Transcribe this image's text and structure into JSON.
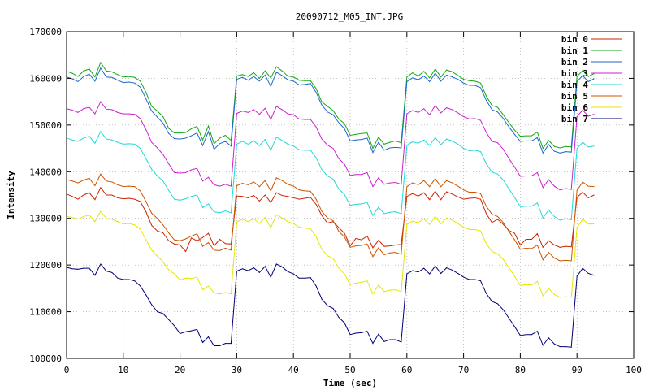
{
  "chart_data": {
    "type": "line",
    "title": "20090712_M05_INT.JPG",
    "xlabel": "Time (sec)",
    "ylabel": "Intensity",
    "xlim": [
      0,
      100
    ],
    "ylim": [
      100000,
      170000
    ],
    "xticks": [
      0,
      10,
      20,
      30,
      40,
      50,
      60,
      70,
      80,
      90,
      100
    ],
    "yticks": [
      100000,
      110000,
      120000,
      130000,
      140000,
      150000,
      160000,
      170000
    ],
    "grid": true,
    "legend_position": "top-right",
    "x": [
      0,
      1,
      2,
      3,
      4,
      5,
      6,
      7,
      8,
      9,
      10,
      11,
      12,
      13,
      14,
      15,
      16,
      17,
      18,
      19,
      20,
      21,
      22,
      23,
      24,
      25,
      26,
      27,
      28,
      29,
      30,
      31,
      32,
      33,
      34,
      35,
      36,
      37,
      38,
      39,
      40,
      41,
      42,
      43,
      44,
      45,
      46,
      47,
      48,
      49,
      50,
      51,
      52,
      53,
      54,
      55,
      56,
      57,
      58,
      59,
      60,
      61,
      62,
      63,
      64,
      65,
      66,
      67,
      68,
      69,
      70,
      71,
      72,
      73,
      74,
      75,
      76,
      77,
      78,
      79,
      80,
      81,
      82,
      83,
      84,
      85,
      86,
      87,
      88,
      89,
      90,
      91,
      92,
      93
    ],
    "series": [
      {
        "name": "bin 0",
        "color": "#cc2200",
        "values": [
          135200,
          134700,
          134100,
          135000,
          135500,
          134000,
          136600,
          135000,
          135000,
          134400,
          134200,
          134300,
          134100,
          133600,
          131400,
          128500,
          127300,
          126900,
          125200,
          124500,
          124300,
          122900,
          125800,
          125200,
          125900,
          126800,
          124100,
          125500,
          124600,
          124500,
          134800,
          134700,
          134400,
          134900,
          133700,
          135000,
          133400,
          135500,
          134900,
          134700,
          134400,
          134100,
          134300,
          134500,
          133000,
          130600,
          129000,
          129300,
          128000,
          126800,
          124100,
          125700,
          125400,
          126200,
          123700,
          125300,
          124000,
          124100,
          124300,
          124400,
          134700,
          135300,
          134800,
          135500,
          134000,
          135800,
          134000,
          135700,
          135200,
          134600,
          134100,
          134300,
          134400,
          134100,
          131000,
          129100,
          129800,
          128700,
          127400,
          126800,
          124300,
          125500,
          125500,
          126700,
          123800,
          125200,
          124300,
          123800,
          124000,
          123900,
          134500,
          135600,
          134400,
          135000
        ]
      },
      {
        "name": "bin 1",
        "color": "#11aa11",
        "values": [
          161500,
          161100,
          160400,
          161600,
          162000,
          160300,
          163400,
          161600,
          161400,
          160800,
          160300,
          160400,
          160200,
          159400,
          157000,
          154000,
          153000,
          151800,
          149300,
          148300,
          148300,
          148400,
          149200,
          149700,
          146800,
          149800,
          146000,
          147200,
          147800,
          146700,
          160500,
          160800,
          160400,
          161200,
          160000,
          161600,
          160100,
          162500,
          161600,
          160500,
          160300,
          159600,
          159500,
          159500,
          157800,
          155000,
          154000,
          153100,
          151300,
          150300,
          147800,
          148000,
          148200,
          148300,
          145000,
          147400,
          145900,
          146300,
          146600,
          146200,
          160300,
          161200,
          160500,
          161500,
          160100,
          162000,
          160300,
          161800,
          161400,
          160600,
          159800,
          159500,
          159400,
          159000,
          156200,
          154200,
          153800,
          152200,
          150500,
          148900,
          147600,
          147700,
          147700,
          148500,
          145000,
          146700,
          145400,
          145100,
          145400,
          145300,
          160400,
          161700,
          160400,
          161000
        ]
      },
      {
        "name": "bin 2",
        "color": "#1f66cc",
        "values": [
          160300,
          159900,
          159300,
          160400,
          160900,
          159400,
          162200,
          160300,
          160200,
          159600,
          159100,
          159200,
          159000,
          158100,
          155600,
          153000,
          151700,
          150400,
          148200,
          147100,
          147000,
          147200,
          147700,
          148300,
          145600,
          148600,
          144800,
          146000,
          146500,
          145500,
          159800,
          160200,
          159600,
          160400,
          159400,
          160700,
          158300,
          161300,
          160600,
          159700,
          159400,
          158600,
          158700,
          158900,
          157000,
          154300,
          152800,
          152200,
          150500,
          149200,
          146600,
          146800,
          146900,
          147200,
          144100,
          146300,
          144600,
          145100,
          145200,
          145100,
          159300,
          160100,
          159700,
          160500,
          159300,
          161100,
          159400,
          160700,
          160300,
          159800,
          159000,
          158500,
          158500,
          158000,
          155300,
          153300,
          152800,
          151400,
          149600,
          148000,
          146500,
          146600,
          146600,
          147300,
          144000,
          145800,
          144400,
          144000,
          144300,
          144200,
          159300,
          160600,
          159300,
          159900
        ]
      },
      {
        "name": "bin 3",
        "color": "#cc22cc",
        "values": [
          153500,
          153200,
          152700,
          153500,
          153800,
          152400,
          155000,
          153400,
          153300,
          152700,
          152400,
          152400,
          152300,
          151400,
          149000,
          146300,
          145100,
          143700,
          141700,
          139800,
          139700,
          139800,
          140400,
          140700,
          138000,
          138800,
          137200,
          136900,
          137300,
          136900,
          152500,
          153000,
          152700,
          153300,
          152300,
          153600,
          151200,
          154000,
          153300,
          152400,
          152200,
          151300,
          151200,
          151200,
          149600,
          147000,
          145700,
          145000,
          142800,
          141600,
          139200,
          139400,
          139400,
          139800,
          136800,
          138700,
          137300,
          137600,
          137700,
          137300,
          152400,
          153100,
          152700,
          153500,
          152200,
          154200,
          152600,
          153700,
          153300,
          152600,
          151800,
          151300,
          151400,
          151000,
          148400,
          146500,
          146200,
          144800,
          142800,
          141000,
          139000,
          139100,
          139100,
          139800,
          136600,
          138300,
          136900,
          136100,
          136400,
          136200,
          151800,
          153200,
          151900,
          152300
        ]
      },
      {
        "name": "bin 4",
        "color": "#22d8d8",
        "values": [
          147200,
          146800,
          146500,
          147200,
          147600,
          146100,
          148600,
          147000,
          146800,
          146300,
          145900,
          146000,
          145900,
          145000,
          142800,
          140500,
          139100,
          138000,
          136000,
          134100,
          133900,
          134200,
          134700,
          135000,
          132300,
          133100,
          131400,
          131200,
          131600,
          131200,
          145900,
          146500,
          145900,
          146600,
          145600,
          146900,
          144600,
          147400,
          146700,
          145900,
          145500,
          144700,
          144600,
          144600,
          143000,
          140500,
          139100,
          138400,
          136300,
          135100,
          132800,
          133000,
          133100,
          133400,
          130600,
          132400,
          131000,
          131300,
          131400,
          131000,
          145700,
          146400,
          146100,
          146800,
          145600,
          147300,
          145800,
          147000,
          146600,
          145900,
          145000,
          144500,
          144600,
          144300,
          141700,
          139900,
          139500,
          138200,
          136300,
          134500,
          132500,
          132600,
          132600,
          133300,
          130100,
          131800,
          130400,
          129600,
          129900,
          129700,
          145000,
          146300,
          145300,
          145500
        ]
      },
      {
        "name": "bin 5",
        "color": "#cc5500",
        "values": [
          138300,
          138000,
          137600,
          138200,
          138600,
          137000,
          139500,
          138000,
          137800,
          137200,
          136800,
          136900,
          136800,
          135900,
          133600,
          131100,
          130000,
          128600,
          126900,
          125400,
          125200,
          125600,
          126200,
          126700,
          124000,
          124800,
          123200,
          123100,
          123600,
          123200,
          137000,
          137500,
          137200,
          137800,
          136800,
          138100,
          135900,
          138700,
          138100,
          137300,
          136900,
          136100,
          135900,
          135800,
          134100,
          131500,
          130100,
          129500,
          127200,
          126000,
          123800,
          124100,
          124200,
          124500,
          121800,
          123700,
          122200,
          122600,
          122700,
          122300,
          136800,
          137600,
          137200,
          138100,
          136800,
          138500,
          136800,
          138100,
          137600,
          136900,
          136100,
          135600,
          135600,
          135300,
          132600,
          130900,
          130400,
          129100,
          127200,
          125400,
          123400,
          123600,
          123500,
          124300,
          121100,
          122700,
          121500,
          120900,
          121000,
          120900,
          136000,
          137800,
          136900,
          136800
        ]
      },
      {
        "name": "bin 6",
        "color": "#e6e600",
        "values": [
          130400,
          130200,
          129800,
          130400,
          130700,
          129300,
          131500,
          130000,
          129800,
          129300,
          128800,
          128900,
          128600,
          127700,
          125400,
          123200,
          121900,
          120700,
          119000,
          118100,
          116800,
          117200,
          117100,
          117400,
          114700,
          115500,
          114000,
          113800,
          114100,
          113800,
          129200,
          129800,
          129300,
          129900,
          128900,
          130200,
          128000,
          130800,
          130100,
          129300,
          128900,
          128100,
          127900,
          127800,
          126100,
          123400,
          122000,
          121400,
          119300,
          118100,
          115800,
          116100,
          116300,
          116600,
          113800,
          115700,
          114300,
          114600,
          114700,
          114300,
          128700,
          129400,
          129100,
          129900,
          128700,
          130400,
          128800,
          130100,
          129600,
          128900,
          128100,
          127600,
          127600,
          127300,
          124600,
          122900,
          122400,
          121200,
          119400,
          117600,
          115600,
          115800,
          115700,
          116500,
          113400,
          115000,
          113700,
          113100,
          113200,
          113100,
          128000,
          129800,
          128800,
          128800
        ]
      },
      {
        "name": "bin 7",
        "color": "#000077",
        "values": [
          119500,
          119200,
          119100,
          119300,
          119300,
          117800,
          120200,
          118700,
          118400,
          117200,
          116900,
          116900,
          116600,
          115500,
          113600,
          111500,
          110000,
          109600,
          108300,
          107000,
          105300,
          105700,
          105900,
          106200,
          103400,
          104600,
          102700,
          102700,
          103200,
          103200,
          118700,
          119200,
          118800,
          119400,
          118400,
          119700,
          117400,
          120200,
          119600,
          118600,
          118100,
          117200,
          117200,
          117300,
          115500,
          112700,
          111300,
          110700,
          108800,
          107600,
          105100,
          105400,
          105500,
          105800,
          103200,
          105200,
          103600,
          104000,
          104000,
          103500,
          118100,
          118800,
          118500,
          119300,
          118100,
          119800,
          118200,
          119400,
          118900,
          118200,
          117400,
          116900,
          116900,
          116600,
          113900,
          112200,
          111700,
          110400,
          108600,
          106800,
          104900,
          105100,
          105100,
          105800,
          102800,
          104400,
          103100,
          102500,
          102500,
          102400,
          117600,
          119300,
          118200,
          117800
        ]
      }
    ]
  }
}
